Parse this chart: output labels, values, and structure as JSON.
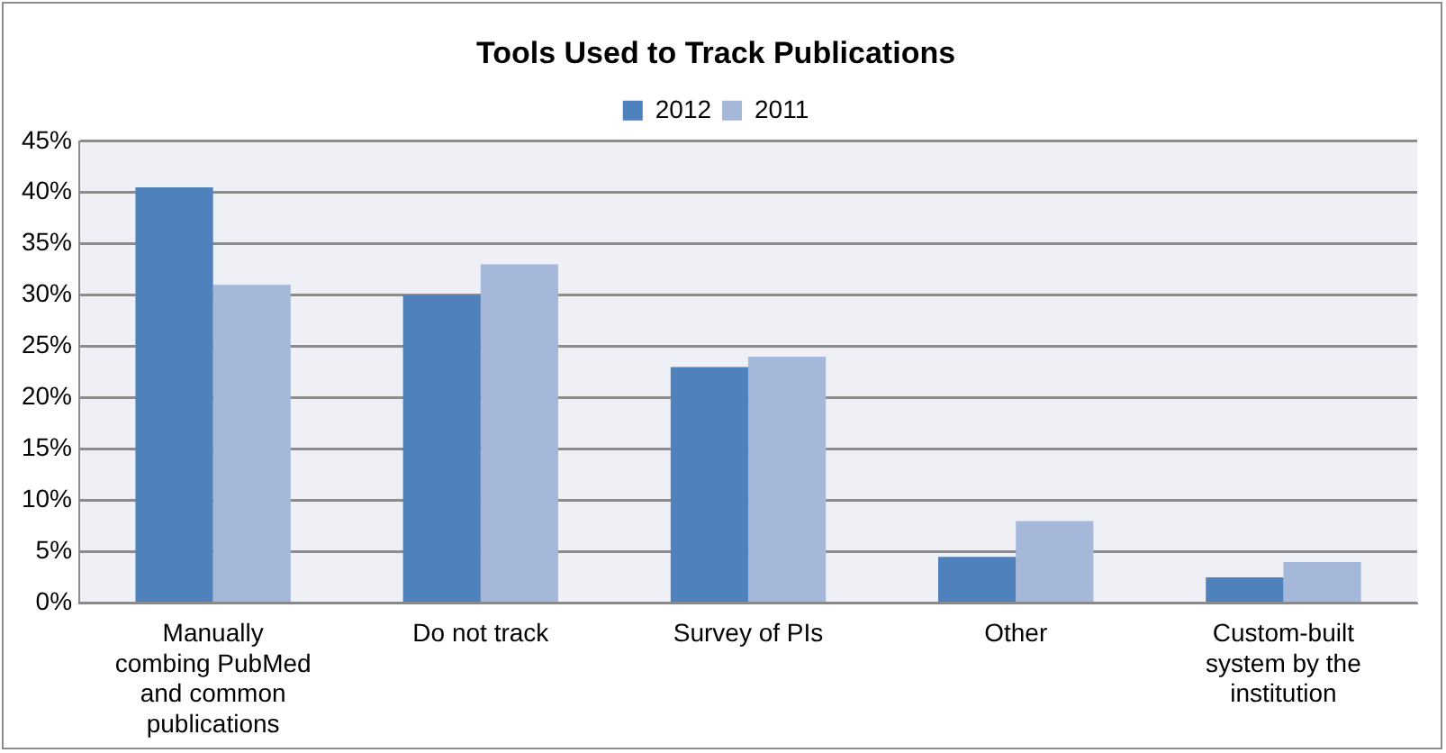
{
  "chart_data": {
    "type": "bar",
    "title": "Tools Used to Track Publications",
    "categories": [
      "Manually combing PubMed and common publications",
      "Do not track",
      "Survey of PIs",
      "Other",
      "Custom-built system by the institution"
    ],
    "series": [
      {
        "name": "2012",
        "color": "#4f81bd",
        "values": [
          40.5,
          30,
          23,
          4.5,
          2.5
        ]
      },
      {
        "name": "2011",
        "color": "#a5b8d9",
        "values": [
          31,
          33,
          24,
          8,
          4
        ]
      }
    ],
    "ylim": [
      0,
      45
    ],
    "yticks": [
      {
        "value": 0,
        "label": "0%"
      },
      {
        "value": 5,
        "label": "5%"
      },
      {
        "value": 10,
        "label": "10%"
      },
      {
        "value": 15,
        "label": "15%"
      },
      {
        "value": 20,
        "label": "20%"
      },
      {
        "value": 25,
        "label": "25%"
      },
      {
        "value": 30,
        "label": "30%"
      },
      {
        "value": 35,
        "label": "35%"
      },
      {
        "value": 40,
        "label": "40%"
      },
      {
        "value": 45,
        "label": "45%"
      }
    ],
    "grid": "y",
    "legend": "top"
  }
}
